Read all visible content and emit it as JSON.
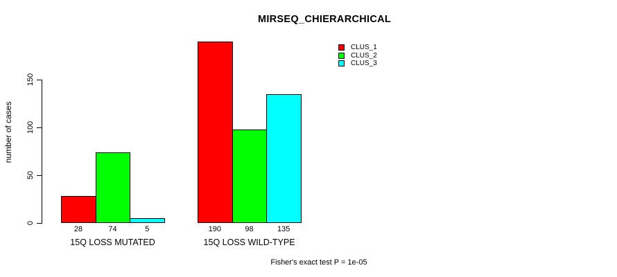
{
  "title": "MIRSEQ_CHIERARCHICAL",
  "chart_data": {
    "type": "bar",
    "grouped": true,
    "title": "MIRSEQ_CHIERARCHICAL",
    "categories": [
      "15Q LOSS MUTATED",
      "15Q LOSS WILD-TYPE"
    ],
    "series": [
      {
        "name": "CLUS_1",
        "color": "#ff0000",
        "values": [
          28,
          190
        ]
      },
      {
        "name": "CLUS_2",
        "color": "#00ff00",
        "values": [
          74,
          98
        ]
      },
      {
        "name": "CLUS_3",
        "color": "#00ffff",
        "values": [
          5,
          135
        ]
      }
    ],
    "xlabel": "",
    "ylabel": "number of cases",
    "yticks": [
      0,
      50,
      100,
      150
    ],
    "ylim": [
      0,
      190
    ],
    "bar_value_labels": [
      [
        "28",
        "74",
        "5"
      ],
      [
        "190",
        "98",
        "135"
      ]
    ],
    "grid": false,
    "legend_position": "top-right",
    "bar_border_color": "#000000",
    "axis_color": "#000000",
    "annotation": "Fisher's exact test P = 1e-05"
  }
}
